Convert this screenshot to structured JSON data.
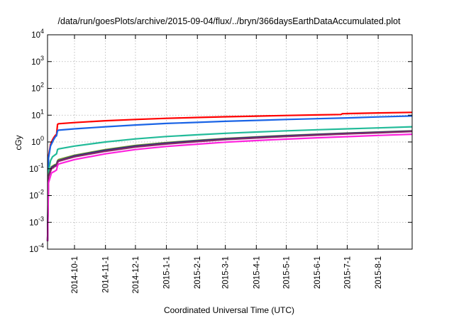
{
  "chart_data": {
    "type": "line",
    "title": "/data/run/goesPlots/archive/2015-09-04/flux/../bryn/366daysEarthDataAccumulated.plot",
    "xlabel": "Coordinated Universal Time (UTC)",
    "ylabel": "cGy",
    "x_scale": "time",
    "y_scale": "log",
    "xlim": [
      "2014-09-04",
      "2015-09-04"
    ],
    "ylim": [
      0.0001,
      10000
    ],
    "grid": true,
    "legend": "none",
    "x_tick_labels": [
      "2014-10-1",
      "2014-11-1",
      "2014-12-1",
      "2015-1-1",
      "2015-2-1",
      "2015-3-1",
      "2015-4-1",
      "2015-5-1",
      "2015-6-1",
      "2015-7-1",
      "2015-8-1"
    ],
    "x_ticks": [
      "2014-10-01",
      "2014-11-01",
      "2014-12-01",
      "2015-01-01",
      "2015-02-01",
      "2015-03-01",
      "2015-04-01",
      "2015-05-01",
      "2015-06-01",
      "2015-07-01",
      "2015-08-01"
    ],
    "y_ticks": [
      {
        "value": 0.0001,
        "base": "10",
        "exp": "-4"
      },
      {
        "value": 0.001,
        "base": "10",
        "exp": "-3"
      },
      {
        "value": 0.01,
        "base": "10",
        "exp": "-2"
      },
      {
        "value": 0.1,
        "base": "10",
        "exp": "-1"
      },
      {
        "value": 1,
        "base": "10",
        "exp": "0"
      },
      {
        "value": 10,
        "base": "10",
        "exp": "1"
      },
      {
        "value": 100,
        "base": "10",
        "exp": "2"
      },
      {
        "value": 1000,
        "base": "10",
        "exp": "3"
      },
      {
        "value": 10000,
        "base": "10",
        "exp": "4"
      }
    ],
    "series": [
      {
        "color": "#ff0000",
        "x": [
          "2014-09-04",
          "2014-09-05",
          "2014-09-07",
          "2014-09-09",
          "2014-09-10",
          "2014-09-11",
          "2014-09-12",
          "2014-09-13",
          "2014-09-14",
          "2014-09-15",
          "2014-10-01",
          "2014-11-01",
          "2014-12-01",
          "2015-01-01",
          "2015-02-01",
          "2015-03-01",
          "2015-04-01",
          "2015-05-01",
          "2015-06-01",
          "2015-06-25",
          "2015-06-26",
          "2015-07-01",
          "2015-08-01",
          "2015-09-04"
        ],
        "y": [
          0.0002,
          0.3,
          0.8,
          1.2,
          1.4,
          1.6,
          1.8,
          1.9,
          4.5,
          4.8,
          5.3,
          6.2,
          6.9,
          7.6,
          8.2,
          8.7,
          9.2,
          9.7,
          10.2,
          10.6,
          11.3,
          11.5,
          12.1,
          12.7
        ]
      },
      {
        "color": "#1a64e6",
        "x": [
          "2014-09-04",
          "2014-09-05",
          "2014-09-07",
          "2014-09-09",
          "2014-09-10",
          "2014-09-11",
          "2014-09-12",
          "2014-09-13",
          "2014-09-14",
          "2014-09-15",
          "2014-10-01",
          "2014-11-01",
          "2014-12-01",
          "2015-01-01",
          "2015-02-01",
          "2015-03-01",
          "2015-04-01",
          "2015-05-01",
          "2015-06-01",
          "2015-07-01",
          "2015-08-01",
          "2015-09-04"
        ],
        "y": [
          0.0002,
          0.25,
          0.7,
          1.0,
          1.2,
          1.4,
          1.6,
          1.7,
          2.6,
          2.75,
          3.1,
          3.7,
          4.3,
          4.9,
          5.4,
          5.9,
          6.4,
          6.9,
          7.4,
          7.9,
          8.6,
          9.3
        ]
      },
      {
        "color": "#22bb99",
        "x": [
          "2014-09-04",
          "2014-09-05",
          "2014-09-07",
          "2014-09-09",
          "2014-09-11",
          "2014-09-13",
          "2014-09-14",
          "2014-09-15",
          "2014-10-01",
          "2014-11-01",
          "2014-12-01",
          "2015-01-01",
          "2015-02-01",
          "2015-03-01",
          "2015-04-01",
          "2015-05-01",
          "2015-06-01",
          "2015-07-01",
          "2015-08-01",
          "2015-09-04"
        ],
        "y": [
          0.0002,
          0.08,
          0.2,
          0.28,
          0.32,
          0.36,
          0.52,
          0.55,
          0.7,
          1.0,
          1.3,
          1.6,
          1.85,
          2.1,
          2.35,
          2.6,
          2.85,
          3.1,
          3.35,
          3.7
        ]
      },
      {
        "color": "#7a9a2a",
        "x": [
          "2014-09-04",
          "2014-09-05",
          "2014-09-08",
          "2014-09-11",
          "2014-09-13",
          "2014-09-14",
          "2014-09-15",
          "2014-10-01",
          "2014-11-01",
          "2014-12-01",
          "2015-01-01",
          "2015-02-01",
          "2015-03-01",
          "2015-04-01",
          "2015-05-01",
          "2015-06-01",
          "2015-07-01",
          "2015-08-01",
          "2015-09-04"
        ],
        "y": [
          0.0002,
          0.06,
          0.12,
          0.14,
          0.15,
          0.2,
          0.22,
          0.32,
          0.52,
          0.74,
          0.95,
          1.15,
          1.35,
          1.55,
          1.75,
          1.95,
          2.15,
          2.35,
          2.6
        ]
      },
      {
        "color": "#2a2a88",
        "x": [
          "2014-09-04",
          "2014-09-05",
          "2014-09-08",
          "2014-09-11",
          "2014-09-13",
          "2014-09-14",
          "2014-09-15",
          "2014-10-01",
          "2014-11-01",
          "2014-12-01",
          "2015-01-01",
          "2015-02-01",
          "2015-03-01",
          "2015-04-01",
          "2015-05-01",
          "2015-06-01",
          "2015-07-01",
          "2015-08-01",
          "2015-09-04"
        ],
        "y": [
          0.0002,
          0.055,
          0.11,
          0.13,
          0.14,
          0.185,
          0.2,
          0.3,
          0.49,
          0.7,
          0.9,
          1.1,
          1.3,
          1.5,
          1.7,
          1.9,
          2.1,
          2.3,
          2.55
        ]
      },
      {
        "color": "#882a66",
        "x": [
          "2014-09-04",
          "2014-09-05",
          "2014-09-08",
          "2014-09-11",
          "2014-09-13",
          "2014-09-14",
          "2014-09-15",
          "2014-10-01",
          "2014-11-01",
          "2014-12-01",
          "2015-01-01",
          "2015-02-01",
          "2015-03-01",
          "2015-04-01",
          "2015-05-01",
          "2015-06-01",
          "2015-07-01",
          "2015-08-01",
          "2015-09-04"
        ],
        "y": [
          0.0002,
          0.05,
          0.1,
          0.12,
          0.13,
          0.17,
          0.19,
          0.28,
          0.45,
          0.65,
          0.84,
          1.03,
          1.22,
          1.41,
          1.6,
          1.8,
          2.0,
          2.2,
          2.45
        ]
      },
      {
        "color": "#ff22dd",
        "x": [
          "2014-09-04",
          "2014-09-05",
          "2014-09-08",
          "2014-09-11",
          "2014-09-13",
          "2014-09-14",
          "2014-09-15",
          "2014-10-01",
          "2014-11-01",
          "2014-12-01",
          "2015-01-01",
          "2015-02-01",
          "2015-03-01",
          "2015-04-01",
          "2015-05-01",
          "2015-06-01",
          "2015-07-01",
          "2015-08-01",
          "2015-09-04"
        ],
        "y": [
          0.0002,
          0.03,
          0.07,
          0.08,
          0.09,
          0.13,
          0.15,
          0.22,
          0.36,
          0.52,
          0.68,
          0.83,
          0.98,
          1.13,
          1.28,
          1.43,
          1.58,
          1.75,
          1.95
        ]
      }
    ]
  }
}
